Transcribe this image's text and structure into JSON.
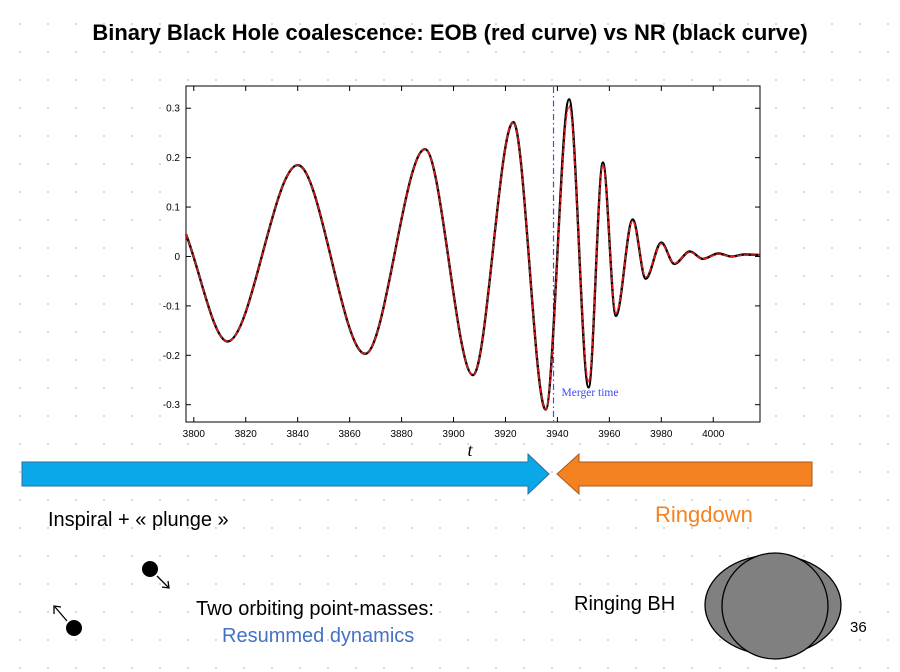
{
  "slide": {
    "title": "Binary Black Hole coalescence: EOB (red curve) vs NR (black curve)",
    "inspiral_label": "Inspiral + « plunge »",
    "ringdown_label": "Ringdown",
    "two_masses_label": "Two orbiting point-masses:",
    "resummed_label": "Resummed dynamics",
    "ringing_label": "Ringing BH",
    "page_number": "36"
  },
  "colors": {
    "inspiral_arrow": "#0aa8e8",
    "ringdown_arrow": "#f58220",
    "eob_curve": "#e31a1c",
    "nr_curve": "#000000",
    "merger_line": "#3b4cf0",
    "black_hole": "#808080",
    "resummed_text": "#4472c4"
  },
  "icons": [
    "inspiral-arrow",
    "ringdown-arrow",
    "orbiting-mass",
    "ringing-black-hole"
  ],
  "chart_data": {
    "type": "line",
    "xlabel": "t",
    "ylabel": "",
    "xlim": [
      3797,
      4018
    ],
    "ylim": [
      -0.335,
      0.345
    ],
    "x_ticks": [
      3800,
      3820,
      3840,
      3860,
      3880,
      3900,
      3920,
      3940,
      3960,
      3980,
      4000
    ],
    "x_tick_labels": [
      "3800",
      "3820",
      "3840",
      "3860",
      "3880",
      "3900",
      "3920",
      "3940",
      "3960",
      "3980",
      "4000"
    ],
    "y_ticks": [
      0.3,
      0.2,
      0.1,
      0,
      -0.1,
      -0.2,
      -0.3
    ],
    "y_tick_labels": [
      "0.3",
      "0.2",
      "0.1",
      "0",
      "-0.1",
      "-0.2",
      "-0.3"
    ],
    "merger_time": 3938.5,
    "annotation": "Merger time",
    "series": [
      {
        "name": "NR",
        "x": [
          3797,
          3813,
          3840,
          3866,
          3889,
          3907.5,
          3923,
          3935.5,
          3944.5,
          3952,
          3957.5,
          3962.5,
          3969,
          3974,
          3980,
          3985,
          3991,
          3996,
          4002,
          4007,
          4012,
          4018
        ],
        "y": [
          0.045,
          -0.172,
          0.185,
          -0.197,
          0.217,
          -0.24,
          0.272,
          -0.31,
          0.318,
          -0.265,
          0.19,
          -0.12,
          0.075,
          -0.045,
          0.028,
          -0.015,
          0.01,
          -0.005,
          0.006,
          0.0,
          0.004,
          0.003
        ]
      },
      {
        "name": "EOB",
        "x": [
          3797,
          3813,
          3840,
          3866,
          3889,
          3907.5,
          3923,
          3935.5,
          3944.5,
          3952,
          3957.5,
          3962.5,
          3969,
          3974,
          3980,
          3985,
          3991,
          3996,
          4002,
          4007,
          4012,
          4018
        ],
        "y": [
          0.045,
          -0.172,
          0.185,
          -0.197,
          0.217,
          -0.24,
          0.272,
          -0.31,
          0.306,
          -0.255,
          0.185,
          -0.115,
          0.072,
          -0.042,
          0.026,
          -0.014,
          0.009,
          -0.005,
          0.005,
          0.0,
          0.003,
          0.003
        ]
      }
    ]
  }
}
